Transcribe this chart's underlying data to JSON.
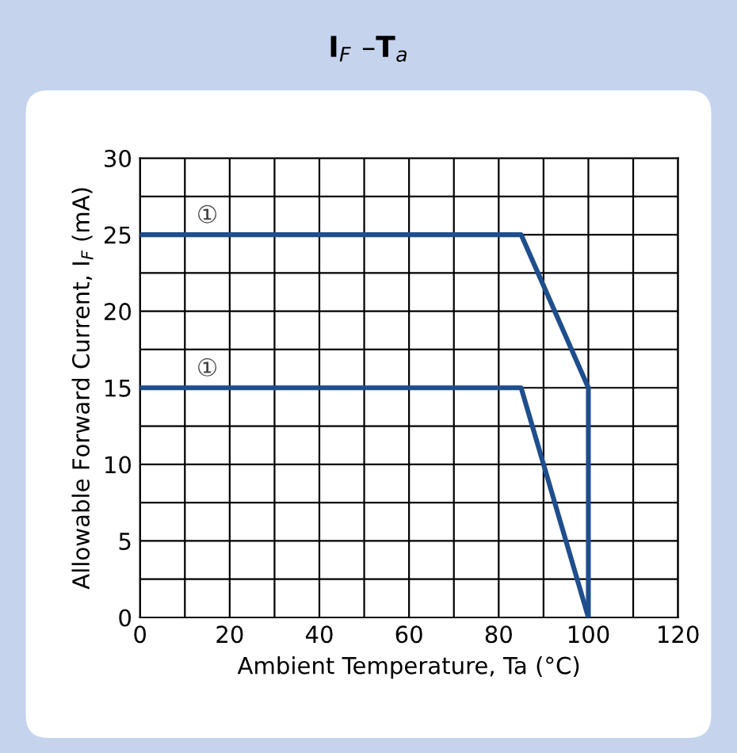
{
  "chart_data": {
    "type": "line",
    "title": "I$_{F}$ –T$_{a}$",
    "xlabel": "Ambient Temperature, Ta (°C)",
    "ylabel": "Allowable Forward Current, I$_{F}$ (mA)",
    "series": [
      {
        "color": "#1f4e8c",
        "x": [
          0,
          85,
          100,
          100
        ],
        "values": [
          25,
          25,
          15,
          0
        ]
      },
      {
        "color": "#1f4e8c",
        "x": [
          0,
          85,
          100
        ],
        "values": [
          15,
          15,
          0
        ]
      }
    ],
    "xlim": [
      0,
      120
    ],
    "ylim": [
      0,
      30
    ],
    "xticks": [
      0,
      {
        "value": 10,
        "label": null
      },
      20,
      {
        "value": 30,
        "label": null
      },
      40,
      {
        "value": 50,
        "label": null
      },
      60,
      {
        "value": 70,
        "label": null
      },
      80,
      {
        "value": 90,
        "label": null
      },
      100,
      {
        "value": 110,
        "label": null
      },
      120
    ],
    "yticks": [
      0,
      {
        "value": 2.5,
        "label": null
      },
      5,
      {
        "value": 7.5,
        "label": null
      },
      10,
      {
        "value": 12.5,
        "label": null
      },
      15,
      {
        "value": 17.5,
        "label": null
      },
      20,
      {
        "value": 22.5,
        "label": null
      },
      25,
      {
        "value": 27.5,
        "label": null
      },
      30
    ],
    "grid": true,
    "marker": "none",
    "line_style": "solid",
    "annotations": [
      {
        "text": "①",
        "x": 15,
        "y": 25
      },
      {
        "text": "①",
        "x": 15,
        "y": 15
      }
    ]
  }
}
